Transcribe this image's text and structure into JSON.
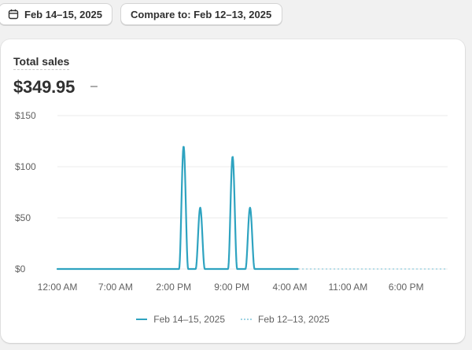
{
  "toolbar": {
    "date_range": {
      "icon": "calendar-icon",
      "label": "Feb 14–15, 2025"
    },
    "compare": {
      "label": "Compare to: Feb 12–13, 2025"
    }
  },
  "card": {
    "title": "Total sales",
    "value": "$349.95",
    "change": "–"
  },
  "colors": {
    "primary_series": "#2ea3c0",
    "comparison_series": "#9fd3e3",
    "gridline": "#ebebeb"
  },
  "chart_data": {
    "type": "line",
    "ylim": [
      0,
      150
    ],
    "y_ticks": [
      "$0",
      "$50",
      "$100",
      "$150"
    ],
    "y_tick_values": [
      0,
      50,
      100,
      150
    ],
    "x_ticks": [
      "12:00 AM",
      "7:00 AM",
      "2:00 PM",
      "9:00 PM",
      "4:00 AM",
      "11:00 AM",
      "6:00 PM"
    ],
    "x_tick_hours": [
      0,
      7,
      14,
      21,
      28,
      35,
      42
    ],
    "x_range_hours": [
      0,
      47
    ],
    "grid": true,
    "legend_position": "bottom-center",
    "series": [
      {
        "name": "Feb 14–15, 2025",
        "style": "solid",
        "hours_shown": [
          0,
          29
        ],
        "peaks": [
          {
            "hour": 15.2,
            "value": 120
          },
          {
            "hour": 17.2,
            "value": 60
          },
          {
            "hour": 21.1,
            "value": 110
          },
          {
            "hour": 23.2,
            "value": 60
          }
        ]
      },
      {
        "name": "Feb 12–13, 2025",
        "style": "dotted",
        "hours_shown": [
          29,
          47
        ],
        "values": [
          0
        ]
      }
    ]
  }
}
